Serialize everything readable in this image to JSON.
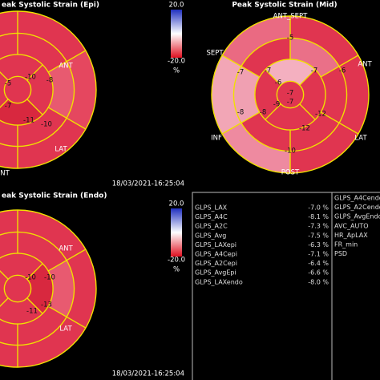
{
  "panels": [
    {
      "title": "eak Systolic Strain (Epi)",
      "scale_max": "20.0",
      "scale_min": "-20.0",
      "unit": "%",
      "labels": [
        "ANT",
        "LAT",
        "NT"
      ],
      "values": [
        -10,
        -8,
        -5,
        -7,
        -11,
        -10
      ],
      "timestamp": "18/03/2021-16:25:04"
    },
    {
      "title": "Peak Systolic Strain (Mid)",
      "labels": [
        "ANT_SEPT",
        "SEPT",
        "ANT",
        "INF",
        "LAT",
        "POST"
      ],
      "values": [
        -5,
        -7,
        -7,
        -7,
        -6,
        -6,
        -7,
        -7,
        -9,
        -8,
        -8,
        -12,
        -12,
        -10
      ]
    },
    {
      "title": "eak Systolic Strain (Endo)",
      "scale_max": "20.0",
      "scale_min": "-20.0",
      "unit": "%",
      "labels": [
        "ANT",
        "LAT"
      ],
      "values": [
        -10,
        -10,
        -13,
        -11
      ],
      "timestamp": "18/03/2021-16:25:04"
    }
  ],
  "table": {
    "rows": [
      [
        "GLPS_LAX",
        "-7.0 %"
      ],
      [
        "GLPS_A4C",
        "-8.1 %"
      ],
      [
        "GLPS_A2C",
        "-7.3 %"
      ],
      [
        "GLPS_Avg",
        "-7.5 %"
      ],
      [
        "GLPS_LAXepi",
        "-6.3 %"
      ],
      [
        "GLPS_A4Cepi",
        "-7.1 %"
      ],
      [
        "GLPS_A2Cepi",
        "-6.4 %"
      ],
      [
        "GLPS_AvgEpi",
        "-6.6 %"
      ],
      [
        "GLPS_LAXendo",
        "-8.0 %"
      ]
    ],
    "side": [
      "GLPS_A4Cendo",
      "GLPS_A2Cendo",
      "GLPS_AvgEndo",
      "AVC_AUTO",
      "HR_ApLAX",
      "FR_min",
      "PSD"
    ]
  }
}
